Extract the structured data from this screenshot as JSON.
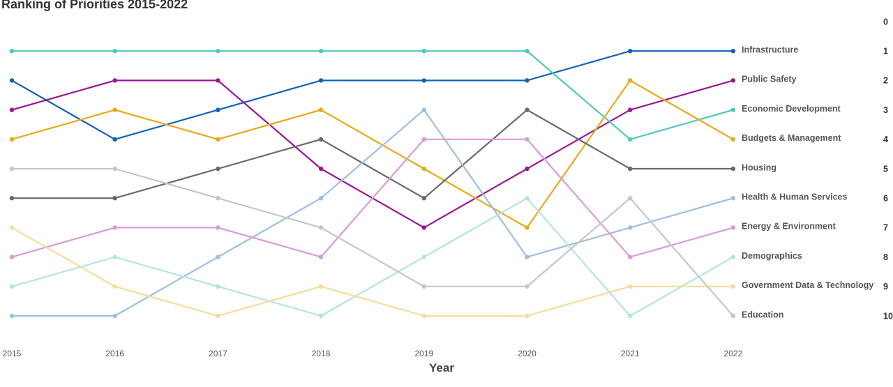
{
  "title": "Ranking of Priorities 2015-2022",
  "chart_data": {
    "type": "line",
    "title": "Ranking of Priorities 2015-2022",
    "xlabel": "Year",
    "ylabel": "",
    "x": [
      "2015",
      "2016",
      "2017",
      "2018",
      "2019",
      "2020",
      "2021",
      "2022"
    ],
    "y_inverted": true,
    "ylim": [
      0,
      10
    ],
    "right_axis_ticks": [
      "0",
      "1",
      "2",
      "3",
      "4",
      "5",
      "6",
      "7",
      "8",
      "9",
      "10"
    ],
    "grid": false,
    "legend": "inline-right",
    "series": [
      {
        "name": "Infrastructure",
        "color": "#1160b8",
        "values": [
          2,
          4,
          3,
          2,
          2,
          2,
          1,
          1
        ]
      },
      {
        "name": "Public Safety",
        "color": "#9a1594",
        "values": [
          3,
          2,
          2,
          5,
          7,
          5,
          3,
          2
        ]
      },
      {
        "name": "Economic Development",
        "color": "#4ec9b8",
        "values": [
          1,
          1,
          1,
          1,
          1,
          1,
          4,
          3
        ]
      },
      {
        "name": "Budgets & Management",
        "color": "#e8a915",
        "values": [
          4,
          3,
          4,
          3,
          5,
          7,
          2,
          4
        ]
      },
      {
        "name": "Housing",
        "color": "#696969",
        "values": [
          6,
          6,
          5,
          4,
          6,
          3,
          5,
          5
        ]
      },
      {
        "name": "Health & Human Services",
        "color": "#9cbfe1",
        "values": [
          10,
          10,
          8,
          6,
          3,
          8,
          7,
          6
        ]
      },
      {
        "name": "Energy & Environment",
        "color": "#d99ad8",
        "values": [
          8,
          7,
          7,
          8,
          4,
          4,
          8,
          7
        ]
      },
      {
        "name": "Demographics",
        "color": "#b2e6dd",
        "values": [
          9,
          8,
          9,
          10,
          8,
          6,
          10,
          8
        ]
      },
      {
        "name": "Government Data & Technology",
        "color": "#f5dc9a",
        "values": [
          7,
          9,
          10,
          9,
          10,
          10,
          9,
          9
        ]
      },
      {
        "name": "Education",
        "color": "#c6c6c6",
        "values": [
          5,
          5,
          6,
          7,
          9,
          9,
          6,
          10
        ]
      }
    ]
  }
}
